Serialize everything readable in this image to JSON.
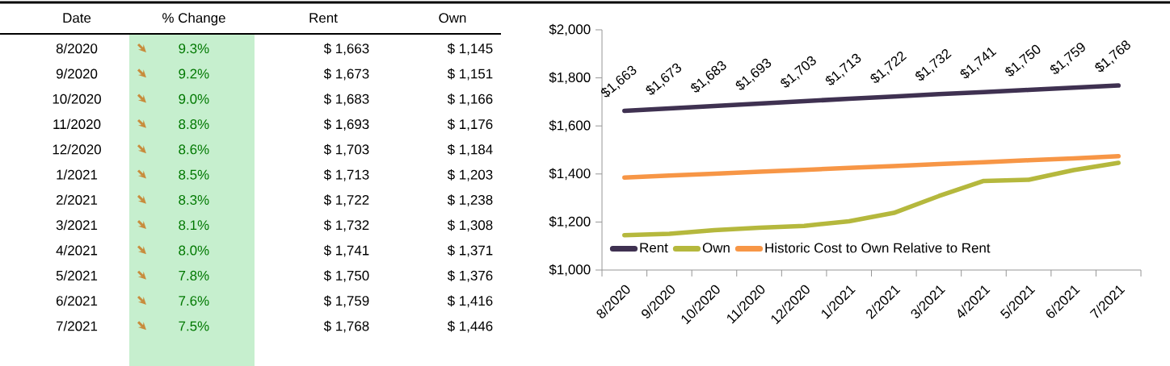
{
  "chart_data": [
    {
      "type": "other",
      "xlabel": "Date",
      "categories": [
        "8/2020",
        "9/2020",
        "10/2020",
        "11/2020",
        "12/2020",
        "1/2021",
        "2/2021",
        "3/2021",
        "4/2021",
        "5/2021",
        "6/2021",
        "7/2021"
      ],
      "series": [
        {
          "name": "% Change",
          "color": "#c6efce",
          "values": [
            9.3,
            9.2,
            9.0,
            8.8,
            8.6,
            8.5,
            8.3,
            8.1,
            8.0,
            7.8,
            7.6,
            7.5
          ],
          "value_labels": [
            "9.3%",
            "9.2%",
            "9.0%",
            "8.8%",
            "8.6%",
            "8.5%",
            "8.3%",
            "8.1%",
            "8.0%",
            "7.8%",
            "7.6%",
            "7.5%"
          ]
        },
        {
          "name": "Rent",
          "values": [
            1663,
            1673,
            1683,
            1693,
            1703,
            1713,
            1722,
            1732,
            1741,
            1750,
            1759,
            1768
          ],
          "value_labels": [
            "$ 1,663",
            "$ 1,673",
            "$ 1,683",
            "$ 1,693",
            "$ 1,703",
            "$ 1,713",
            "$ 1,722",
            "$ 1,732",
            "$ 1,741",
            "$ 1,750",
            "$ 1,759",
            "$ 1,768"
          ]
        },
        {
          "name": "Own",
          "values": [
            1145,
            1151,
            1166,
            1176,
            1184,
            1203,
            1238,
            1308,
            1371,
            1376,
            1416,
            1446
          ],
          "value_labels": [
            "$ 1,145",
            "$ 1,151",
            "$ 1,166",
            "$ 1,176",
            "$ 1,184",
            "$ 1,203",
            "$ 1,238",
            "$ 1,308",
            "$ 1,371",
            "$ 1,376",
            "$ 1,416",
            "$ 1,446"
          ]
        }
      ]
    },
    {
      "type": "line",
      "categories": [
        "8/2020",
        "9/2020",
        "10/2020",
        "11/2020",
        "12/2020",
        "1/2021",
        "2/2021",
        "3/2021",
        "4/2021",
        "5/2021",
        "6/2021",
        "7/2021"
      ],
      "series": [
        {
          "name": "Rent",
          "color": "#3f3151",
          "values": [
            1663,
            1673,
            1683,
            1693,
            1703,
            1713,
            1722,
            1732,
            1741,
            1750,
            1759,
            1768
          ],
          "value_labels": [
            "$1,663",
            "$1,673",
            "$1,683",
            "$1,693",
            "$1,703",
            "$1,713",
            "$1,722",
            "$1,732",
            "$1,741",
            "$1,750",
            "$1,759",
            "$1,768"
          ]
        },
        {
          "name": "Own",
          "color": "#b5b83d",
          "values": [
            1145,
            1151,
            1166,
            1176,
            1184,
            1203,
            1238,
            1308,
            1371,
            1376,
            1416,
            1446
          ]
        },
        {
          "name": "Historic Cost to Own Relative to Rent",
          "color": "#f79646",
          "values": [
            1385,
            1393,
            1401,
            1409,
            1417,
            1425,
            1433,
            1441,
            1449,
            1457,
            1465,
            1474
          ]
        }
      ],
      "ylim": [
        1000,
        2000
      ],
      "yticks": [
        {
          "value": 1000,
          "label": "$1,000"
        },
        {
          "value": 1200,
          "label": "$1,200"
        },
        {
          "value": 1400,
          "label": "$1,400"
        },
        {
          "value": 1600,
          "label": "$1,600"
        },
        {
          "value": 1800,
          "label": "$1,800"
        },
        {
          "value": 2000,
          "label": "$2,000"
        }
      ],
      "legend": "bottom left",
      "marker": "none",
      "line_style": "solid"
    }
  ]
}
